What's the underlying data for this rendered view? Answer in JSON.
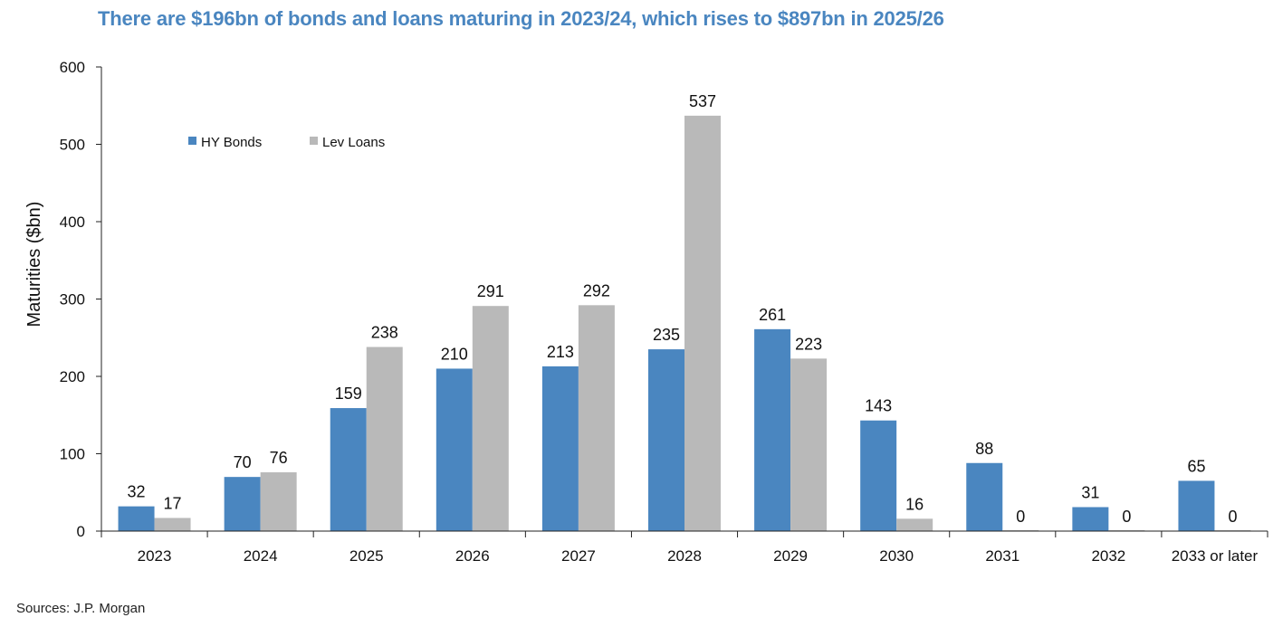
{
  "title": "There are $196bn of bonds and loans maturing in 2023/24, which rises to $897bn in 2025/26",
  "source": "Sources: J.P. Morgan",
  "colors": {
    "hy_bonds": "#4a86c0",
    "lev_loans": "#b9b9b9",
    "title": "#4a86c0"
  },
  "chart_data": {
    "type": "bar",
    "title": "There are $196bn of bonds and loans maturing in 2023/24, which rises to $897bn in 2025/26",
    "xlabel": "",
    "ylabel": "Maturities ($bn)",
    "ylim": [
      0,
      600
    ],
    "yticks": [
      0,
      100,
      200,
      300,
      400,
      500,
      600
    ],
    "grid": false,
    "legend_position": "top-left",
    "categories": [
      "2023",
      "2024",
      "2025",
      "2026",
      "2027",
      "2028",
      "2029",
      "2030",
      "2031",
      "2032",
      "2033 or later"
    ],
    "series": [
      {
        "name": "HY Bonds",
        "values": [
          32,
          70,
          159,
          210,
          213,
          235,
          261,
          143,
          88,
          31,
          65
        ],
        "labels": [
          "32",
          "70",
          "159",
          "210",
          "213",
          "235",
          "261",
          "143",
          "88",
          "31",
          "65"
        ]
      },
      {
        "name": "Lev Loans",
        "values": [
          17,
          76,
          238,
          291,
          292,
          537,
          223,
          16,
          0,
          0,
          0
        ],
        "labels": [
          "17",
          "76",
          "238",
          "291",
          "292",
          "537",
          "223",
          "16",
          "0",
          "0",
          "0"
        ]
      }
    ]
  }
}
